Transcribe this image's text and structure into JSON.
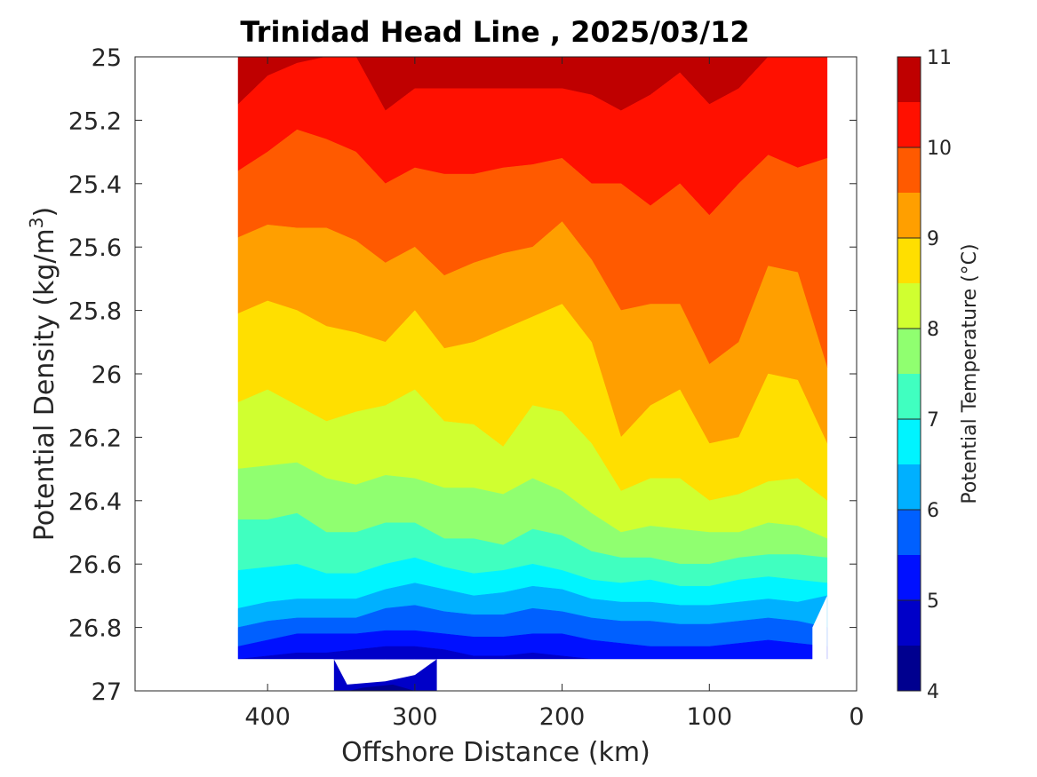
{
  "chart_data": {
    "type": "contour",
    "title": "Trinidad Head Line , 2025/03/12",
    "xlabel": "Offshore Distance (km)",
    "ylabel": "Potential Density (kg/m",
    "ylabel_superscript": "3",
    "ylabel_suffix": ")",
    "x_reversed": true,
    "y_reversed": true,
    "xlim": [
      490,
      0
    ],
    "ylim": [
      25,
      27
    ],
    "x_ticks": [
      400,
      300,
      200,
      100,
      0
    ],
    "x_tick_labels": [
      "400",
      "300",
      "200",
      "100",
      "0"
    ],
    "y_ticks": [
      25,
      25.2,
      25.4,
      25.6,
      25.8,
      26,
      26.2,
      26.4,
      26.6,
      26.8,
      27
    ],
    "y_tick_labels": [
      "25",
      "25.2",
      "25.4",
      "25.6",
      "25.8",
      "26",
      "26.2",
      "26.4",
      "26.6",
      "26.8",
      "27"
    ],
    "grid": false,
    "colorbar": {
      "label": "Potential Temperature (°C)",
      "range": [
        4,
        11
      ],
      "levels": [
        4,
        4.5,
        5,
        5.5,
        6,
        6.5,
        7,
        7.5,
        8,
        8.5,
        9,
        9.5,
        10,
        10.5,
        11
      ],
      "tick_values": [
        4,
        5,
        6,
        7,
        8,
        9,
        10,
        11
      ],
      "tick_labels": [
        "4",
        "5",
        "6",
        "7",
        "8",
        "9",
        "10",
        "11"
      ],
      "colors": [
        "#00008f",
        "#0000c8",
        "#0010ff",
        "#0060ff",
        "#00b0ff",
        "#00f4ff",
        "#40ffc0",
        "#90ff70",
        "#d0ff30",
        "#ffdf00",
        "#ff9f00",
        "#ff5a00",
        "#ff1000",
        "#bf0000"
      ]
    },
    "data_extent": {
      "x": [
        420,
        20
      ],
      "y_bottom_main": 26.9,
      "y_deep_region": [
        355,
        285,
        27
      ]
    },
    "x_samples": [
      420,
      400,
      380,
      360,
      340,
      320,
      300,
      280,
      260,
      240,
      220,
      200,
      180,
      160,
      140,
      120,
      100,
      80,
      60,
      40,
      20
    ],
    "isotherm_depths": [
      {
        "temp": 10.5,
        "y": [
          25.15,
          25.06,
          25.02,
          25.0,
          25.0,
          25.17,
          25.1,
          25.1,
          25.1,
          25.1,
          25.1,
          25.1,
          25.12,
          25.17,
          25.12,
          25.05,
          25.15,
          25.1,
          25.0,
          25.0,
          25.0
        ]
      },
      {
        "temp": 10.0,
        "y": [
          25.36,
          25.3,
          25.23,
          25.26,
          25.3,
          25.4,
          25.35,
          25.37,
          25.37,
          25.35,
          25.34,
          25.32,
          25.4,
          25.4,
          25.47,
          25.4,
          25.5,
          25.4,
          25.31,
          25.35,
          25.32
        ]
      },
      {
        "temp": 9.5,
        "y": [
          25.57,
          25.53,
          25.54,
          25.54,
          25.58,
          25.65,
          25.6,
          25.69,
          25.65,
          25.62,
          25.6,
          25.52,
          25.64,
          25.8,
          25.78,
          25.78,
          25.97,
          25.9,
          25.66,
          25.68,
          25.98
        ]
      },
      {
        "temp": 9.0,
        "y": [
          25.81,
          25.77,
          25.8,
          25.85,
          25.87,
          25.9,
          25.8,
          25.92,
          25.9,
          25.86,
          25.82,
          25.78,
          25.9,
          26.2,
          26.1,
          26.05,
          26.22,
          26.2,
          26.0,
          26.02,
          26.22
        ]
      },
      {
        "temp": 8.5,
        "y": [
          26.09,
          26.05,
          26.1,
          26.15,
          26.12,
          26.1,
          26.05,
          26.15,
          26.16,
          26.23,
          26.1,
          26.12,
          26.22,
          26.37,
          26.33,
          26.33,
          26.4,
          26.38,
          26.34,
          26.33,
          26.4
        ]
      },
      {
        "temp": 8.0,
        "y": [
          26.3,
          26.29,
          26.28,
          26.33,
          26.35,
          26.32,
          26.33,
          26.36,
          26.36,
          26.38,
          26.33,
          26.37,
          26.44,
          26.5,
          26.48,
          26.49,
          26.5,
          26.5,
          26.47,
          26.48,
          26.52
        ]
      },
      {
        "temp": 7.5,
        "y": [
          26.46,
          26.46,
          26.44,
          26.5,
          26.5,
          26.47,
          26.47,
          26.52,
          26.52,
          26.54,
          26.49,
          26.51,
          26.56,
          26.58,
          26.58,
          26.6,
          26.6,
          26.58,
          26.57,
          26.57,
          26.58
        ]
      },
      {
        "temp": 7.0,
        "y": [
          26.62,
          26.61,
          26.6,
          26.63,
          26.63,
          26.6,
          26.58,
          26.61,
          26.63,
          26.62,
          26.6,
          26.62,
          26.65,
          26.66,
          26.65,
          26.67,
          26.67,
          26.65,
          26.64,
          26.65,
          26.66
        ]
      },
      {
        "temp": 6.5,
        "y": [
          26.74,
          26.72,
          26.71,
          26.71,
          26.71,
          26.68,
          26.66,
          26.68,
          26.7,
          26.69,
          26.67,
          26.68,
          26.71,
          26.72,
          26.72,
          26.73,
          26.73,
          26.72,
          26.71,
          26.72,
          26.7
        ]
      },
      {
        "temp": 6.0,
        "y": [
          26.8,
          26.78,
          26.77,
          26.77,
          26.77,
          26.74,
          26.73,
          26.75,
          26.76,
          26.76,
          26.74,
          26.75,
          26.77,
          26.78,
          26.78,
          26.79,
          26.79,
          26.78,
          26.77,
          26.78,
          26.8
        ]
      },
      {
        "temp": 5.5,
        "y": [
          26.86,
          26.84,
          26.82,
          26.82,
          26.82,
          26.81,
          26.81,
          26.82,
          26.83,
          26.83,
          26.82,
          26.82,
          26.84,
          26.85,
          26.86,
          26.86,
          26.86,
          26.85,
          26.84,
          26.85,
          26.86
        ]
      },
      {
        "temp": 5.0,
        "y": [
          26.9,
          26.89,
          26.88,
          26.88,
          26.87,
          26.86,
          26.86,
          26.87,
          26.89,
          26.89,
          26.88,
          26.89,
          26.9,
          26.9,
          26.9,
          26.9,
          26.9,
          26.9,
          26.9,
          26.9,
          26.9
        ]
      }
    ],
    "deep_cells": [
      {
        "temp": 5.0,
        "x": [
          355,
          346,
          320,
          300,
          285
        ],
        "y": [
          26.9,
          26.98,
          26.97,
          26.95,
          26.9
        ]
      },
      {
        "temp": 4.5,
        "x": [
          345,
          335,
          315,
          300
        ],
        "y": [
          27.0,
          26.99,
          26.98,
          27.0
        ]
      }
    ]
  }
}
